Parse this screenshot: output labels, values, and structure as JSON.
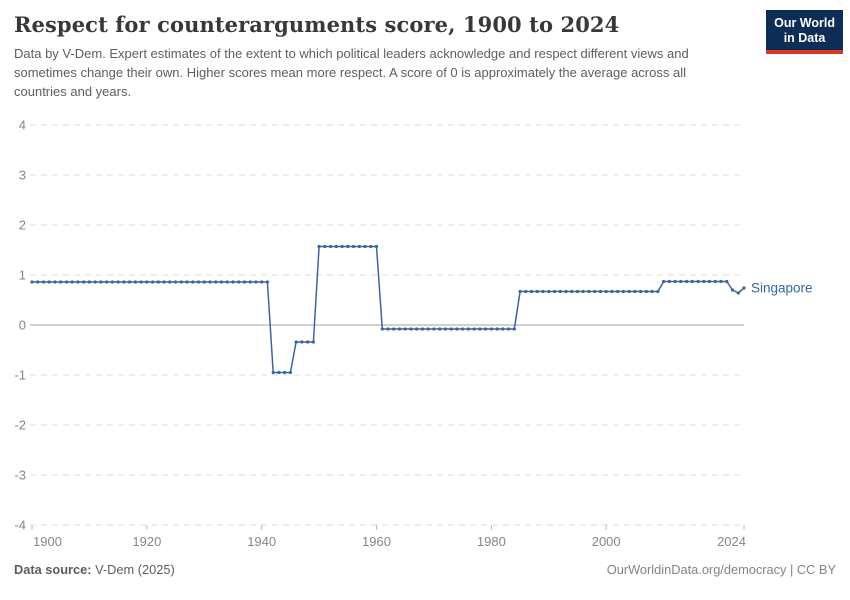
{
  "header": {
    "title": "Respect for counterarguments score, 1900 to 2024",
    "subtitle": "Data by V-Dem. Expert estimates of the extent to which political leaders acknowledge and respect different views and sometimes change their own. Higher scores mean more respect. A score of 0 is approximately the average across all countries and years.",
    "logo": {
      "line1": "Our World",
      "line2": "in Data",
      "bg_color": "#0d2d56",
      "accent_color": "#dc362c"
    }
  },
  "chart_data": {
    "type": "line",
    "title": "Respect for counterarguments score, 1900 to 2024",
    "xlabel": "",
    "ylabel": "",
    "xlim": [
      1900,
      2024
    ],
    "ylim": [
      -4,
      4
    ],
    "x_ticks": [
      1900,
      1920,
      1940,
      1960,
      1980,
      2000,
      2024
    ],
    "y_ticks": [
      4,
      3,
      2,
      1,
      0,
      -1,
      -2,
      -3,
      -4
    ],
    "grid": "dashed horizontal gridlines, solid zero line",
    "grid_color": "#dcdcdc",
    "zero_line_color": "#a3a3a3",
    "tick_label_color": "#878787",
    "legend_position": "end-of-line label",
    "series": [
      {
        "name": "Singapore",
        "color": "#3d639d",
        "marker": "dot",
        "step_segments": [
          {
            "from": 1900,
            "to": 1941,
            "value": 0.86
          },
          {
            "from": 1942,
            "to": 1945,
            "value": -0.95
          },
          {
            "from": 1946,
            "to": 1949,
            "value": -0.34
          },
          {
            "from": 1950,
            "to": 1960,
            "value": 1.57
          },
          {
            "from": 1961,
            "to": 1984,
            "value": -0.08
          },
          {
            "from": 1985,
            "to": 2009,
            "value": 0.67
          },
          {
            "from": 2010,
            "to": 2021,
            "value": 0.87
          },
          {
            "from": 2022,
            "to": 2022,
            "value": 0.7
          },
          {
            "from": 2023,
            "to": 2023,
            "value": 0.64
          },
          {
            "from": 2024,
            "to": 2024,
            "value": 0.74
          }
        ]
      }
    ]
  },
  "footer": {
    "source_label": "Data source:",
    "source_value": " V-Dem (2025)",
    "right_text": "OurWorldinData.org/democracy | CC BY"
  }
}
